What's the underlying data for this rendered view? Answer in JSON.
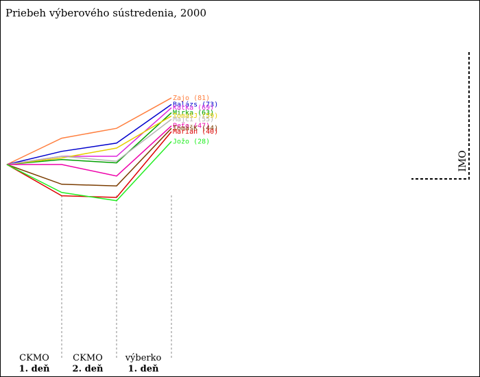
{
  "title": "Priebeh výberového sústredenia, 2000",
  "chart_data": {
    "type": "line",
    "stages": [
      {
        "line1": "CKMO",
        "line2": "1.  deň"
      },
      {
        "line1": "CKMO",
        "line2": "2.  deň"
      },
      {
        "line1": "výberko",
        "line2": "1.  deň"
      }
    ],
    "threshold_label": "IMO",
    "series": [
      {
        "name": "Zajo",
        "final": 81,
        "values": [
          0,
          32,
          44,
          81
        ],
        "color": "#ff7f3f"
      },
      {
        "name": "Balázs",
        "final": 73,
        "values": [
          0,
          16,
          26,
          73
        ],
        "color": "#0000cc"
      },
      {
        "name": "Katka",
        "final": 69,
        "values": [
          0,
          10,
          10,
          69
        ],
        "color": "#dd22dd"
      },
      {
        "name": "Mirka",
        "final": 63,
        "values": [
          0,
          6,
          2,
          63
        ],
        "color": "#00a000"
      },
      {
        "name": "TomášJ",
        "final": 59,
        "values": [
          0,
          8,
          20,
          59
        ],
        "color": "#e6cc00"
      },
      {
        "name": "Majči",
        "final": 55,
        "values": [
          0,
          10,
          4,
          55
        ],
        "color": "#b4b4b4"
      },
      {
        "name": "Peťo",
        "final": 47,
        "values": [
          0,
          0,
          -14,
          47
        ],
        "color": "#ee00aa"
      },
      {
        "name": "TomášK",
        "final": 44,
        "values": [
          0,
          -24,
          -26,
          44
        ],
        "color": "#7a3c00"
      },
      {
        "name": "Marian",
        "final": 40,
        "values": [
          0,
          -38,
          -40,
          40
        ],
        "color": "#dd0000"
      },
      {
        "name": "Jožo",
        "final": 28,
        "values": [
          0,
          -34,
          -44,
          28
        ],
        "color": "#22ee22"
      }
    ]
  }
}
